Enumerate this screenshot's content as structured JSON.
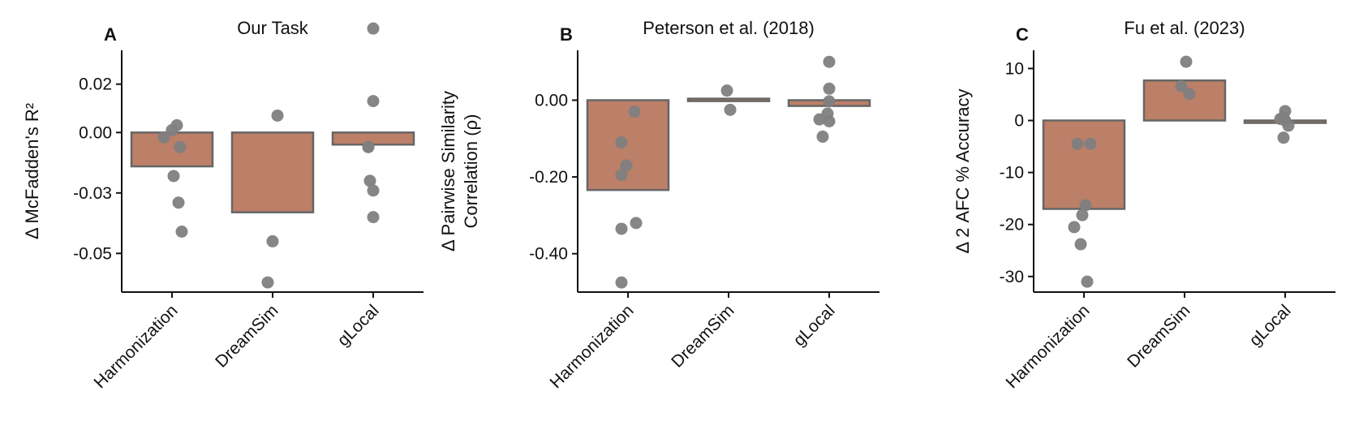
{
  "chart_data": [
    {
      "type": "bar",
      "panel": "A",
      "title": "Our Task",
      "ylabel": "Δ McFadden's R²",
      "ylabel_lines": [
        "Δ McFadden's R²"
      ],
      "categories": [
        "Harmonization",
        "DreamSim",
        "gLocal"
      ],
      "values": [
        -0.014,
        -0.033,
        -0.005
      ],
      "ylim": [
        -0.066,
        0.034
      ],
      "yticks": [
        0.02,
        0.0,
        -0.025,
        -0.05
      ],
      "ytick_labels": [
        "0.02",
        "0.00",
        "-0.03",
        "-0.05"
      ],
      "points": [
        [
          0.003,
          0.001,
          -0.002,
          -0.006,
          -0.018,
          -0.029,
          -0.041
        ],
        [
          0.007,
          -0.045,
          -0.062
        ],
        [
          0.043,
          0.013,
          -0.006,
          -0.006,
          -0.02,
          -0.024,
          -0.035
        ]
      ],
      "bar_color": "#bc7f68",
      "point_color": "#808080"
    },
    {
      "type": "bar",
      "panel": "B",
      "title": "Peterson et al. (2018)",
      "ylabel": "Δ Pairwise Similarity Correlation (ρ)",
      "ylabel_lines": [
        "Δ Pairwise Similarity",
        "Correlation (ρ)"
      ],
      "categories": [
        "Harmonization",
        "DreamSim",
        "gLocal"
      ],
      "values": [
        -0.234,
        0.004,
        -0.015
      ],
      "ylim": [
        -0.5,
        0.13
      ],
      "yticks": [
        0.0,
        -0.2,
        -0.4
      ],
      "ytick_labels": [
        "0.00",
        "-0.20",
        "-0.40"
      ],
      "points": [
        [
          -0.03,
          -0.11,
          -0.17,
          -0.195,
          -0.335,
          -0.32,
          -0.475
        ],
        [
          0.025,
          -0.025
        ],
        [
          0.1,
          0.03,
          -0.003,
          -0.035,
          -0.05,
          -0.055,
          -0.095
        ]
      ],
      "bar_color": "#bc7f68",
      "point_color": "#808080"
    },
    {
      "type": "bar",
      "panel": "C",
      "title": "Fu et al. (2023)",
      "ylabel": "Δ 2 AFC % Accuracy",
      "ylabel_lines": [
        "Δ 2 AFC % Accuracy"
      ],
      "categories": [
        "Harmonization",
        "DreamSim",
        "gLocal"
      ],
      "values": [
        -17.0,
        7.7,
        -0.2
      ],
      "ylim": [
        -33.0,
        13.5
      ],
      "yticks": [
        10,
        0,
        -10,
        -20,
        -30
      ],
      "ytick_labels": [
        "10",
        "0",
        "-10",
        "-20",
        "-30"
      ],
      "points": [
        [
          -4.5,
          -4.5,
          -16.3,
          -18.2,
          -20.5,
          -23.8,
          -31.0
        ],
        [
          11.3,
          6.6,
          5.1
        ],
        [
          1.8,
          0.6,
          0.3,
          0.0,
          -1.0,
          -3.3
        ]
      ],
      "bar_color": "#bc7f68",
      "point_color": "#808080"
    }
  ]
}
